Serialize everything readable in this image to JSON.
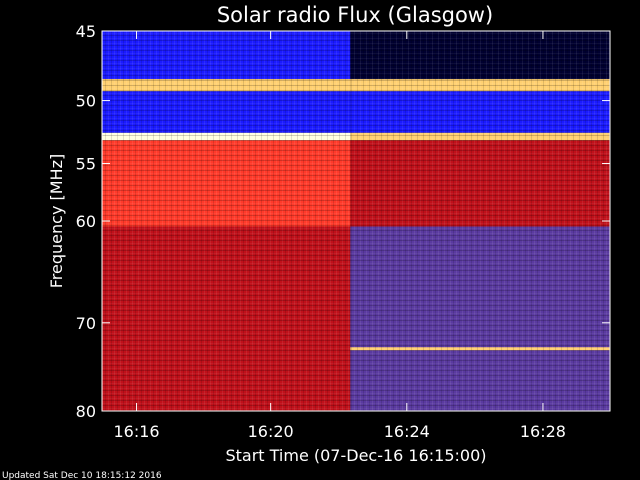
{
  "chart_data": {
    "type": "heatmap",
    "title": "Solar radio Flux (Glasgow)",
    "xlabel": "Start Time (07-Dec-16 16:15:00)",
    "ylabel": "Frequency [MHz]",
    "x_unit": "minutes",
    "x_ticks": [
      {
        "value": 16.267,
        "label": "16:16"
      },
      {
        "value": 16.333,
        "label": "16:20"
      },
      {
        "value": 16.4,
        "label": "16:24"
      },
      {
        "value": 16.467,
        "label": "16:28"
      }
    ],
    "xlim": [
      16.25,
      16.5
    ],
    "y_ticks": [
      {
        "value": 45,
        "label": "45"
      },
      {
        "value": 50,
        "label": "50"
      },
      {
        "value": 55,
        "label": "55"
      },
      {
        "value": 60,
        "label": "60"
      },
      {
        "value": 70,
        "label": "70"
      },
      {
        "value": 80,
        "label": "80"
      }
    ],
    "ylim": [
      45,
      80
    ],
    "y_scale": "log",
    "y_inverted": true,
    "grid": false,
    "colormap": [
      "#000030",
      "#1a1aff",
      "#5a3aa0",
      "#c0101a",
      "#ff3a2a",
      "#ffd070",
      "#ffffe0"
    ],
    "time_change_at": "16:22:20",
    "regions": [
      {
        "freq_range": [
          45,
          48.4
        ],
        "before": "#1a1aff",
        "after": "#000030"
      },
      {
        "freq_range": [
          48.4,
          49.3
        ],
        "before": "#ffd070",
        "after": "#ffd070"
      },
      {
        "freq_range": [
          49.3,
          52.5
        ],
        "before": "#1a1aff",
        "after": "#1a1aff"
      },
      {
        "freq_range": [
          52.5,
          53.1
        ],
        "before": "#ffffe0",
        "after": "#ffd070"
      },
      {
        "freq_range": [
          53.1,
          60.5
        ],
        "before": "#ff3a2a",
        "after": "#c0101a"
      },
      {
        "freq_range": [
          60.5,
          80
        ],
        "before": "#c0101a",
        "after": "#5a3aa0"
      }
    ],
    "bright_lines": [
      {
        "freq": 72.8,
        "start": "16:22:20",
        "color": "#ffd070"
      }
    ]
  },
  "footer": {
    "updated": "Updated Sat Dec 10 18:15:12 2016"
  }
}
